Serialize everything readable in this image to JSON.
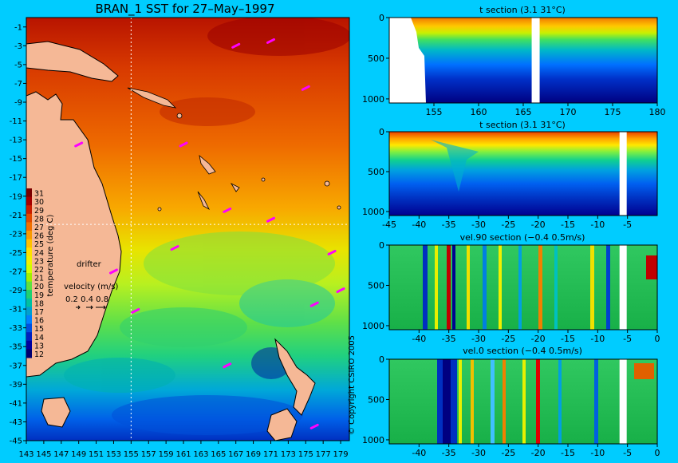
{
  "background": "#00ccff",
  "chart_data": [
    {
      "type": "heatmap",
      "title": "BRAN_1 SST for 27–May–1997",
      "xlim": [
        143,
        180
      ],
      "ylim": [
        -45,
        0
      ],
      "x_ticks": [
        143,
        145,
        147,
        149,
        151,
        153,
        155,
        157,
        159,
        161,
        163,
        165,
        167,
        169,
        171,
        173,
        175,
        177,
        179
      ],
      "y_ticks": [
        -1,
        -3,
        -5,
        -7,
        -9,
        -11,
        -13,
        -15,
        -17,
        -19,
        -21,
        -23,
        -25,
        -27,
        -29,
        -31,
        -33,
        -35,
        -37,
        -39,
        -41,
        -43,
        -45
      ],
      "crosshair": {
        "lon": 155,
        "lat": -22
      },
      "colorbar": {
        "label": "temperature (deg C)",
        "ticks": [
          31,
          30,
          29,
          28,
          27,
          26,
          25,
          24,
          23,
          22,
          21,
          20,
          19,
          18,
          17,
          16,
          15,
          14,
          13,
          12
        ],
        "colors": [
          "#7a0000",
          "#a50000",
          "#c81e00",
          "#e04a00",
          "#f07000",
          "#f89a00",
          "#ffc000",
          "#ffe000",
          "#f0f000",
          "#d0ff00",
          "#a0f000",
          "#60e040",
          "#20d070",
          "#00c0a0",
          "#00a0d0",
          "#0080ff",
          "#0050e0",
          "#0020c0",
          "#0000a0",
          "#000070"
        ]
      },
      "velocity_legend": {
        "label": "velocity (m/s)",
        "values": "0.2 0.4 0.8"
      },
      "drifter_label": "drifter",
      "drifters": [
        {
          "lon": 167,
          "lat": -3
        },
        {
          "lon": 171,
          "lat": -2.5
        },
        {
          "lon": 175,
          "lat": -7.5
        },
        {
          "lon": 149,
          "lat": -13.5
        },
        {
          "lon": 161,
          "lat": -13.5
        },
        {
          "lon": 166,
          "lat": -20.5
        },
        {
          "lon": 171,
          "lat": -21.5
        },
        {
          "lon": 160,
          "lat": -24.5
        },
        {
          "lon": 178,
          "lat": -25
        },
        {
          "lon": 153,
          "lat": -27
        },
        {
          "lon": 179,
          "lat": -29
        },
        {
          "lon": 176,
          "lat": -30.5
        },
        {
          "lon": 155.5,
          "lat": -31.2
        },
        {
          "lon": 166,
          "lat": -37
        },
        {
          "lon": 176,
          "lat": -43.5
        }
      ],
      "copyright": "© Copyright CSIRO 2005"
    },
    {
      "type": "heatmap",
      "title": "t section (3.1      31°C)",
      "xlim": [
        150,
        180
      ],
      "ylim": [
        1050,
        0
      ],
      "x_ticks": [
        155,
        160,
        165,
        170,
        175,
        180
      ],
      "y_ticks": [
        0,
        500,
        1000
      ],
      "gap_x": 166.3
    },
    {
      "type": "heatmap",
      "title": "t section (3.1      31°C)",
      "xlim": [
        -45,
        0
      ],
      "ylim": [
        1050,
        0
      ],
      "x_ticks": [
        -45,
        -40,
        -35,
        -30,
        -25,
        -20,
        -15,
        -10,
        -5
      ],
      "y_ticks": [
        0,
        500,
        1000
      ],
      "gap_x": -5.8
    },
    {
      "type": "heatmap",
      "title": "vel.90 section (−0.4      0.5m/s)",
      "xlim": [
        -45,
        0
      ],
      "ylim": [
        1050,
        0
      ],
      "x_ticks": [
        -40,
        -35,
        -30,
        -25,
        -20,
        -15,
        -10,
        -5,
        0
      ],
      "y_ticks": [
        0,
        500,
        1000
      ],
      "gap_x": -5.8
    },
    {
      "type": "heatmap",
      "title": "vel.0 section (−0.4      0.5m/s)",
      "xlim": [
        -45,
        0
      ],
      "ylim": [
        1050,
        0
      ],
      "x_ticks": [
        -40,
        -35,
        -30,
        -25,
        -20,
        -15,
        -10,
        -5,
        0
      ],
      "y_ticks": [
        0,
        500,
        1000
      ],
      "gap_x": -5.8
    }
  ]
}
